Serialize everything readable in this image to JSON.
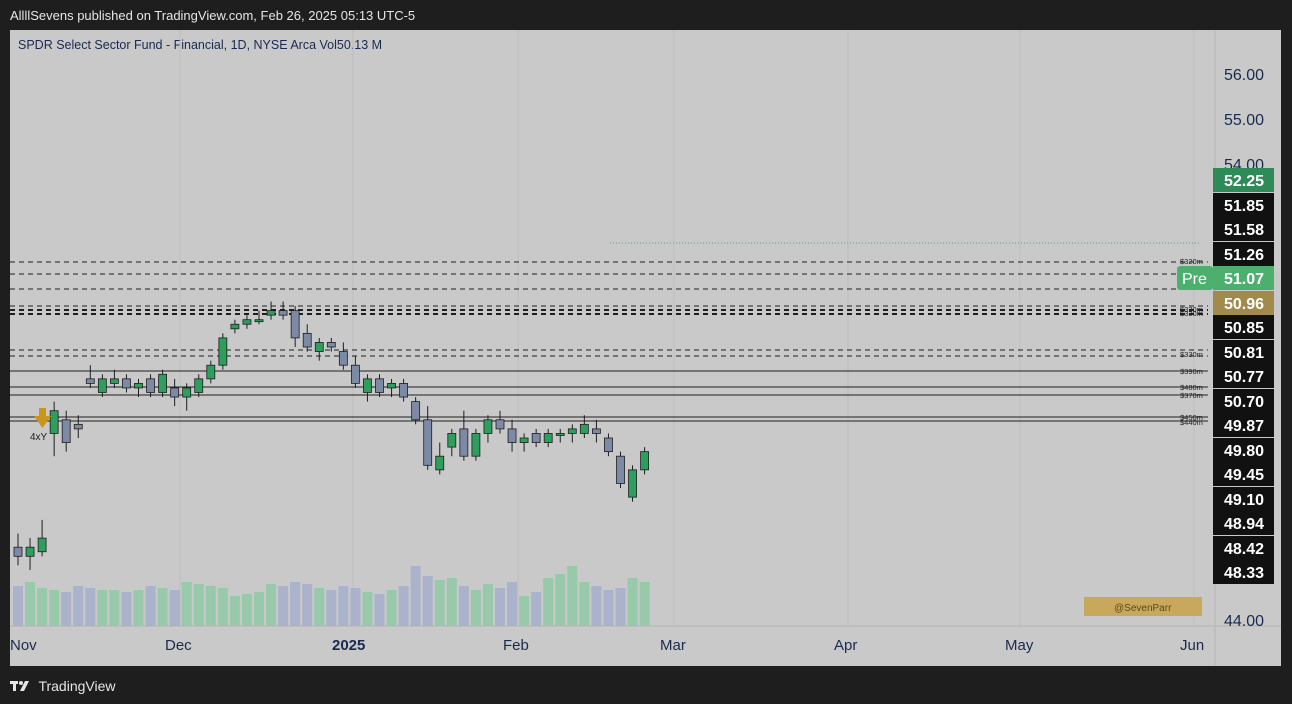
{
  "header": {
    "published": "AllllSevens published on TradingView.com, Feb 26, 2025 05:13 UTC-5"
  },
  "symbol_line": "SPDR Select Sector Fund - Financial, 1D, NYSE Arca  Vol50.13 M",
  "footer": {
    "brand": "TradingView"
  },
  "colors": {
    "up": "#2e9e5e",
    "down": "#7c8aa6",
    "badge_up": "#2e8b57",
    "badge_pre": "#4caf6e",
    "badge_gold": "#a08a4c",
    "watermark_bg": "#c8a85a"
  },
  "chart_data": {
    "type": "candlestick",
    "x_ticks": [
      "Nov",
      "Dec",
      "2025",
      "Feb",
      "Mar",
      "Apr",
      "May",
      "Jun"
    ],
    "y_ticks": [
      "56.00",
      "55.00",
      "54.00",
      "44.00"
    ],
    "price_badges": [
      {
        "value": "52.25",
        "style": "green"
      },
      {
        "value": "51.85",
        "style": "dark"
      },
      {
        "value": "51.58",
        "style": "dark"
      },
      {
        "value": "51.26",
        "style": "dark"
      },
      {
        "value": "51.07",
        "label": "Pre",
        "style": "pre"
      },
      {
        "value": "50.96",
        "style": "gold"
      },
      {
        "value": "50.85",
        "style": "dark"
      },
      {
        "value": "50.81",
        "style": "dark"
      },
      {
        "value": "50.77",
        "style": "dark"
      },
      {
        "value": "50.70",
        "style": "dark"
      },
      {
        "value": "49.87",
        "style": "dark"
      },
      {
        "value": "49.80",
        "style": "dark"
      },
      {
        "value": "49.45",
        "style": "dark"
      },
      {
        "value": "49.10",
        "style": "dark"
      },
      {
        "value": "48.94",
        "style": "dark"
      },
      {
        "value": "48.42",
        "style": "dark"
      },
      {
        "value": "48.33",
        "style": "dark"
      }
    ],
    "level_labels": [
      "$320m",
      "$330m",
      "$390m",
      "$480m",
      "$370m",
      "$450m",
      "$440m",
      "$330m",
      "$330m"
    ],
    "marker": {
      "label": "4xY"
    },
    "watermark": "@SevenParr",
    "candles": [
      {
        "o": 45.6,
        "h": 45.9,
        "l": 45.2,
        "c": 45.4
      },
      {
        "o": 45.4,
        "h": 45.8,
        "l": 45.1,
        "c": 45.6
      },
      {
        "o": 45.5,
        "h": 46.2,
        "l": 45.4,
        "c": 45.8
      },
      {
        "o": 48.1,
        "h": 48.8,
        "l": 47.6,
        "c": 48.6
      },
      {
        "o": 48.4,
        "h": 48.6,
        "l": 47.7,
        "c": 47.9
      },
      {
        "o": 48.3,
        "h": 48.5,
        "l": 48.0,
        "c": 48.2
      },
      {
        "o": 49.3,
        "h": 49.6,
        "l": 49.1,
        "c": 49.2
      },
      {
        "o": 49.0,
        "h": 49.4,
        "l": 48.9,
        "c": 49.3
      },
      {
        "o": 49.2,
        "h": 49.5,
        "l": 49.1,
        "c": 49.3
      },
      {
        "o": 49.3,
        "h": 49.4,
        "l": 49.0,
        "c": 49.1
      },
      {
        "o": 49.1,
        "h": 49.3,
        "l": 48.9,
        "c": 49.2
      },
      {
        "o": 49.3,
        "h": 49.4,
        "l": 48.9,
        "c": 49.0
      },
      {
        "o": 49.0,
        "h": 49.5,
        "l": 48.9,
        "c": 49.4
      },
      {
        "o": 49.1,
        "h": 49.3,
        "l": 48.7,
        "c": 48.9
      },
      {
        "o": 48.9,
        "h": 49.2,
        "l": 48.6,
        "c": 49.1
      },
      {
        "o": 49.0,
        "h": 49.4,
        "l": 48.9,
        "c": 49.3
      },
      {
        "o": 49.3,
        "h": 49.7,
        "l": 49.2,
        "c": 49.6
      },
      {
        "o": 49.6,
        "h": 50.3,
        "l": 49.5,
        "c": 50.2
      },
      {
        "o": 50.4,
        "h": 50.6,
        "l": 50.3,
        "c": 50.5
      },
      {
        "o": 50.5,
        "h": 50.7,
        "l": 50.4,
        "c": 50.6
      },
      {
        "o": 50.6,
        "h": 50.8,
        "l": 50.5,
        "c": 50.6
      },
      {
        "o": 50.7,
        "h": 51.0,
        "l": 50.6,
        "c": 50.8
      },
      {
        "o": 50.8,
        "h": 51.0,
        "l": 50.6,
        "c": 50.7
      },
      {
        "o": 50.8,
        "h": 50.9,
        "l": 50.0,
        "c": 50.2
      },
      {
        "o": 50.3,
        "h": 50.5,
        "l": 49.9,
        "c": 50.0
      },
      {
        "o": 49.9,
        "h": 50.2,
        "l": 49.7,
        "c": 50.1
      },
      {
        "o": 50.1,
        "h": 50.2,
        "l": 49.9,
        "c": 50.0
      },
      {
        "o": 49.9,
        "h": 50.1,
        "l": 49.5,
        "c": 49.6
      },
      {
        "o": 49.6,
        "h": 49.8,
        "l": 49.1,
        "c": 49.2
      },
      {
        "o": 49.0,
        "h": 49.4,
        "l": 48.8,
        "c": 49.3
      },
      {
        "o": 49.3,
        "h": 49.4,
        "l": 48.9,
        "c": 49.0
      },
      {
        "o": 49.1,
        "h": 49.3,
        "l": 48.9,
        "c": 49.2
      },
      {
        "o": 49.2,
        "h": 49.3,
        "l": 48.8,
        "c": 48.9
      },
      {
        "o": 48.8,
        "h": 48.9,
        "l": 48.3,
        "c": 48.4
      },
      {
        "o": 48.4,
        "h": 48.7,
        "l": 47.3,
        "c": 47.4
      },
      {
        "o": 47.3,
        "h": 47.9,
        "l": 47.2,
        "c": 47.6
      },
      {
        "o": 47.8,
        "h": 48.2,
        "l": 47.6,
        "c": 48.1
      },
      {
        "o": 48.2,
        "h": 48.6,
        "l": 47.5,
        "c": 47.6
      },
      {
        "o": 47.6,
        "h": 48.2,
        "l": 47.5,
        "c": 48.1
      },
      {
        "o": 48.1,
        "h": 48.5,
        "l": 47.9,
        "c": 48.4
      },
      {
        "o": 48.4,
        "h": 48.6,
        "l": 48.1,
        "c": 48.2
      },
      {
        "o": 48.2,
        "h": 48.4,
        "l": 47.7,
        "c": 47.9
      },
      {
        "o": 47.9,
        "h": 48.1,
        "l": 47.7,
        "c": 48.0
      },
      {
        "o": 48.1,
        "h": 48.2,
        "l": 47.8,
        "c": 47.9
      },
      {
        "o": 47.9,
        "h": 48.2,
        "l": 47.8,
        "c": 48.1
      },
      {
        "o": 48.1,
        "h": 48.2,
        "l": 47.9,
        "c": 48.1
      },
      {
        "o": 48.1,
        "h": 48.3,
        "l": 47.9,
        "c": 48.2
      },
      {
        "o": 48.1,
        "h": 48.5,
        "l": 48.0,
        "c": 48.3
      },
      {
        "o": 48.2,
        "h": 48.4,
        "l": 47.9,
        "c": 48.1
      },
      {
        "o": 48.0,
        "h": 48.1,
        "l": 47.6,
        "c": 47.7
      },
      {
        "o": 47.6,
        "h": 47.7,
        "l": 46.9,
        "c": 47.0
      },
      {
        "o": 46.7,
        "h": 47.4,
        "l": 46.6,
        "c": 47.3
      },
      {
        "o": 47.3,
        "h": 47.8,
        "l": 47.2,
        "c": 47.7
      }
    ]
  }
}
